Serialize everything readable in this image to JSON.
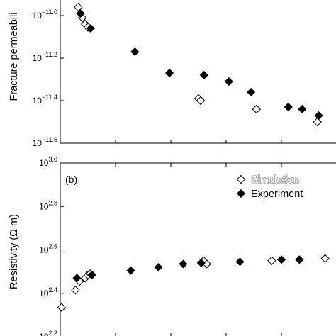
{
  "chart_data": [
    {
      "type": "scatter",
      "ylabel": "Fracture permeabili",
      "yscale": "log",
      "ylim_exp": [
        -11.6,
        -10.9
      ],
      "yticks": [
        {
          "exp": -11.6,
          "base": "10",
          "sup": "−11.6"
        },
        {
          "exp": -11.4,
          "base": "10",
          "sup": "−11.4"
        },
        {
          "exp": -11.2,
          "base": "10",
          "sup": "−11.2"
        },
        {
          "exp": -11.0,
          "base": "10",
          "sup": "−11.0"
        }
      ],
      "xlim": [
        0,
        100
      ],
      "x_minor_ticks": [
        20,
        40,
        60,
        80
      ],
      "series": [
        {
          "marker": "open-diamond",
          "points": [
            [
              6.5,
              -10.96
            ],
            [
              8.0,
              -11.01
            ],
            [
              9.0,
              -11.04
            ],
            [
              10.0,
              -11.055
            ],
            [
              50.0,
              -11.39
            ],
            [
              50.8,
              -11.4
            ],
            [
              71.0,
              -11.44
            ],
            [
              93.0,
              -11.5
            ]
          ]
        },
        {
          "marker": "filled-diamond",
          "points": [
            [
              7.3,
              -10.99
            ],
            [
              11.0,
              -11.06
            ],
            [
              27.0,
              -11.17
            ],
            [
              39.5,
              -11.27
            ],
            [
              52.0,
              -11.28
            ],
            [
              61.0,
              -11.31
            ],
            [
              69.0,
              -11.36
            ],
            [
              82.5,
              -11.43
            ],
            [
              87.5,
              -11.44
            ],
            [
              93.5,
              -11.47
            ]
          ]
        }
      ]
    },
    {
      "type": "scatter",
      "panel_label": "(b)",
      "ylabel": "Resistivity (Ω m)",
      "yscale": "log",
      "ylim_exp": [
        2.2,
        3.0
      ],
      "yticks": [
        {
          "exp": 2.2,
          "base": "10",
          "sup": "2.2"
        },
        {
          "exp": 2.4,
          "base": "10",
          "sup": "2.4"
        },
        {
          "exp": 2.6,
          "base": "10",
          "sup": "2.6"
        },
        {
          "exp": 2.8,
          "base": "10",
          "sup": "2.8"
        },
        {
          "exp": 3.0,
          "base": "10",
          "sup": "3.0"
        }
      ],
      "xlim": [
        0,
        100
      ],
      "x_minor_ticks": [
        20,
        40,
        60,
        80
      ],
      "legend": {
        "position": "top-right",
        "entries": [
          {
            "label": "Simulation",
            "marker": "open-diamond"
          },
          {
            "label": "Experiment",
            "marker": "filled-diamond"
          }
        ]
      },
      "series": [
        {
          "name": "Simulation",
          "marker": "open-diamond",
          "points": [
            [
              0.5,
              2.335
            ],
            [
              5.5,
              2.415
            ],
            [
              7.0,
              2.455
            ],
            [
              9.0,
              2.47
            ],
            [
              10.0,
              2.485
            ],
            [
              10.8,
              2.49
            ],
            [
              51.8,
              2.55
            ],
            [
              53.0,
              2.535
            ],
            [
              76.5,
              2.55
            ],
            [
              95.8,
              2.56
            ]
          ]
        },
        {
          "name": "Experiment",
          "marker": "filled-diamond",
          "points": [
            [
              6.0,
              2.47
            ],
            [
              11.5,
              2.485
            ],
            [
              25.5,
              2.505
            ],
            [
              35.5,
              2.52
            ],
            [
              44.5,
              2.535
            ],
            [
              51.0,
              2.54
            ],
            [
              65.0,
              2.545
            ],
            [
              80.0,
              2.555
            ],
            [
              86.5,
              2.555
            ]
          ]
        }
      ]
    }
  ]
}
